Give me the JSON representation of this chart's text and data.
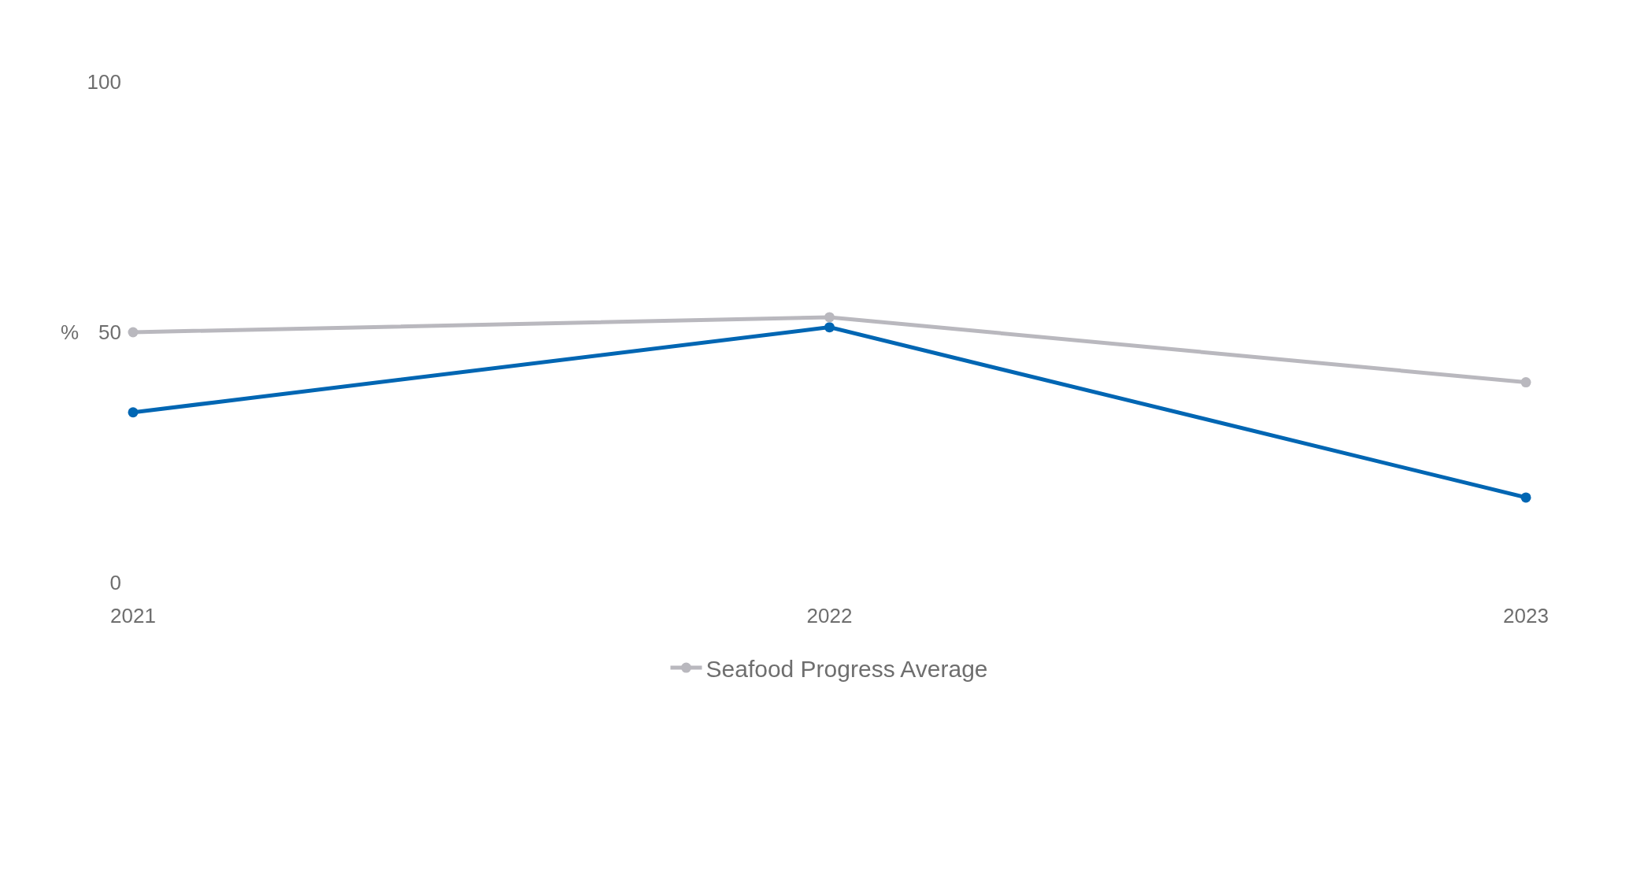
{
  "chart_data": {
    "type": "line",
    "ylabel": "%",
    "categories": [
      "2021",
      "2022",
      "2023"
    ],
    "series": [
      {
        "color": "#0066b3",
        "values": [
          34,
          51,
          17
        ]
      },
      {
        "name": "Seafood Progress Average",
        "color": "#b9b8be",
        "values": [
          50,
          53,
          40
        ]
      }
    ],
    "ylim": [
      0,
      100
    ],
    "yticks": [
      0,
      50,
      100
    ],
    "grid": false,
    "legend": "bottom",
    "marker": "circle",
    "line_style": "solid"
  }
}
